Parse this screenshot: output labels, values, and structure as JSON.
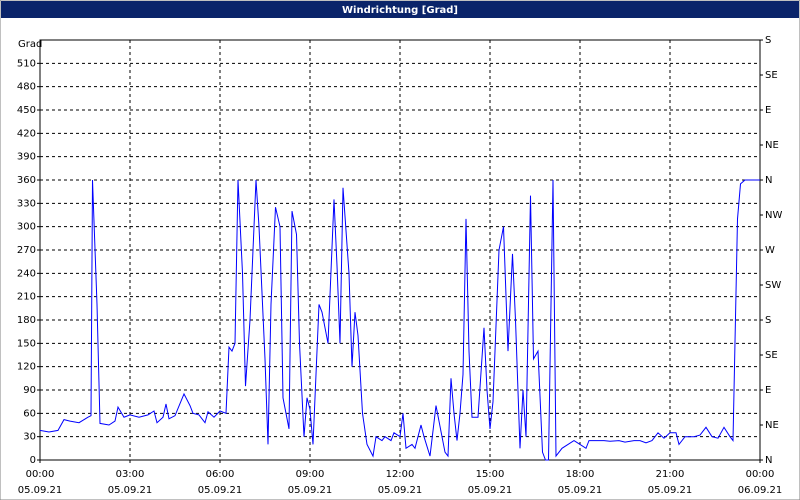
{
  "chart_data": {
    "type": "line",
    "title": "Windrichtung [Grad]",
    "ylabel": "Grad",
    "x": [
      0,
      0.3,
      0.6,
      0.8,
      1.0,
      1.3,
      1.6,
      1.7,
      1.75,
      1.9,
      2.0,
      2.3,
      2.5,
      2.6,
      2.8,
      3.0,
      3.3,
      3.6,
      3.8,
      3.9,
      4.1,
      4.2,
      4.3,
      4.5,
      4.8,
      5.0,
      5.1,
      5.3,
      5.5,
      5.6,
      5.8,
      6.0,
      6.2,
      6.3,
      6.4,
      6.5,
      6.6,
      6.75,
      6.85,
      7.0,
      7.2,
      7.3,
      7.5,
      7.6,
      7.7,
      7.85,
      8.0,
      8.1,
      8.3,
      8.4,
      8.55,
      8.65,
      8.8,
      8.9,
      9.0,
      9.1,
      9.3,
      9.4,
      9.6,
      9.8,
      9.9,
      10.0,
      10.1,
      10.3,
      10.4,
      10.5,
      10.6,
      10.75,
      10.9,
      11.1,
      11.2,
      11.4,
      11.5,
      11.7,
      11.8,
      12.0,
      12.1,
      12.2,
      12.4,
      12.5,
      12.7,
      12.8,
      13.0,
      13.2,
      13.4,
      13.5,
      13.6,
      13.7,
      13.8,
      13.9,
      14.0,
      14.1,
      14.2,
      14.3,
      14.4,
      14.6,
      14.8,
      14.9,
      15.0,
      15.1,
      15.3,
      15.45,
      15.6,
      15.75,
      15.85,
      16.0,
      16.1,
      16.2,
      16.35,
      16.45,
      16.6,
      16.75,
      16.85,
      16.95,
      17.1,
      17.2,
      17.4,
      17.6,
      17.8,
      18.0,
      18.2,
      18.3,
      18.5,
      18.8,
      19.0,
      19.3,
      19.5,
      19.8,
      20.0,
      20.2,
      20.4,
      20.6,
      20.8,
      21.0,
      21.2,
      21.3,
      21.5,
      21.8,
      22.0,
      22.2,
      22.4,
      22.6,
      22.8,
      23.0,
      23.1,
      23.25,
      23.35,
      23.5,
      24
    ],
    "series": [
      {
        "name": "Windrichtung",
        "color": "#0000ff",
        "values": [
          38,
          36,
          38,
          52,
          50,
          48,
          55,
          57,
          360,
          200,
          47,
          45,
          50,
          68,
          55,
          58,
          55,
          58,
          63,
          48,
          55,
          72,
          53,
          57,
          85,
          70,
          60,
          58,
          48,
          62,
          55,
          63,
          60,
          145,
          140,
          150,
          360,
          240,
          95,
          180,
          360,
          300,
          130,
          20,
          200,
          325,
          300,
          80,
          40,
          320,
          290,
          150,
          30,
          80,
          65,
          20,
          200,
          190,
          150,
          335,
          250,
          150,
          350,
          240,
          120,
          190,
          160,
          60,
          20,
          5,
          30,
          25,
          30,
          25,
          35,
          30,
          60,
          15,
          20,
          15,
          45,
          30,
          5,
          70,
          30,
          10,
          5,
          105,
          60,
          25,
          60,
          110,
          310,
          140,
          55,
          55,
          170,
          90,
          40,
          75,
          270,
          300,
          140,
          265,
          180,
          15,
          90,
          30,
          340,
          130,
          140,
          10,
          0,
          0,
          360,
          5,
          15,
          20,
          25,
          20,
          15,
          25,
          25,
          25,
          24,
          25,
          23,
          25,
          25,
          22,
          25,
          35,
          28,
          35,
          35,
          20,
          30,
          30,
          32,
          42,
          30,
          28,
          42,
          30,
          25,
          310,
          355,
          360,
          360
        ]
      }
    ],
    "xlim": [
      0,
      24
    ],
    "xticks": [
      {
        "value": 0,
        "label": "00:00"
      },
      {
        "value": 3,
        "label": "03:00"
      },
      {
        "value": 6,
        "label": "06:00"
      },
      {
        "value": 9,
        "label": "09:00"
      },
      {
        "value": 12,
        "label": "12:00"
      },
      {
        "value": 15,
        "label": "15:00"
      },
      {
        "value": 18,
        "label": "18:00"
      },
      {
        "value": 21,
        "label": "21:00"
      },
      {
        "value": 24,
        "label": "00:00"
      }
    ],
    "xtick_dates": [
      "05.09.21",
      "05.09.21",
      "05.09.21",
      "05.09.21",
      "05.09.21",
      "05.09.21",
      "05.09.21",
      "05.09.21",
      "06.09.21"
    ],
    "ylim": [
      0,
      540
    ],
    "yticks": [
      0,
      30,
      60,
      90,
      120,
      150,
      180,
      210,
      240,
      270,
      300,
      330,
      360,
      390,
      420,
      450,
      480,
      510
    ],
    "y2lim": [
      0,
      540
    ],
    "y2ticks": [
      {
        "value": 0,
        "label": "N"
      },
      {
        "value": 45,
        "label": "NE"
      },
      {
        "value": 90,
        "label": "E"
      },
      {
        "value": 135,
        "label": "SE"
      },
      {
        "value": 180,
        "label": "S"
      },
      {
        "value": 225,
        "label": "SW"
      },
      {
        "value": 270,
        "label": "W"
      },
      {
        "value": 315,
        "label": "NW"
      },
      {
        "value": 360,
        "label": "N"
      },
      {
        "value": 405,
        "label": "NE"
      },
      {
        "value": 450,
        "label": "E"
      },
      {
        "value": 495,
        "label": "SE"
      },
      {
        "value": 540,
        "label": "S"
      }
    ],
    "grid": true
  }
}
